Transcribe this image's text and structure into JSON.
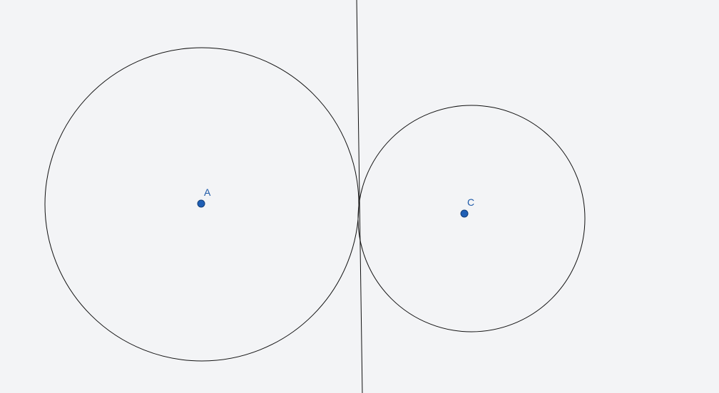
{
  "canvas": {
    "background": "#f3f4f6",
    "stroke_color": "#111111",
    "point_color": "#1f5fb5"
  },
  "points": [
    {
      "name": "A",
      "label": "A"
    },
    {
      "name": "C",
      "label": "C"
    }
  ],
  "objects": [
    {
      "type": "circle",
      "center": "A",
      "tangent_to": "line"
    },
    {
      "type": "circle",
      "center": "C",
      "tangent_to": "line"
    },
    {
      "type": "line",
      "description_hidden": true
    }
  ]
}
